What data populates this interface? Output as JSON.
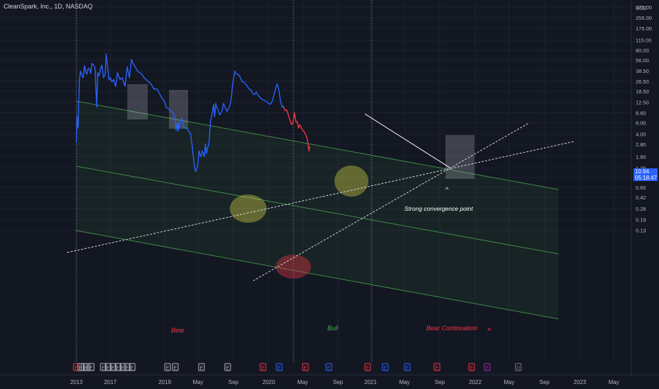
{
  "header": {
    "symbol_line": "CleanSpark, Inc., 1D, NASDAQ"
  },
  "price_axis": {
    "currency": "USD",
    "current_price": "10.94",
    "countdown": "05:18:47",
    "ticks": [
      "550.00",
      "375.00",
      "255.00",
      "175.00",
      "115.00",
      "80.00",
      "56.00",
      "38.50",
      "26.50",
      "18.50",
      "12.50",
      "8.60",
      "6.00",
      "4.00",
      "2.80",
      "1.80",
      "1.20",
      "0.85",
      "0.60",
      "0.42",
      "0.28",
      "0.19",
      "0.13"
    ]
  },
  "time_axis": {
    "labels": [
      "2013",
      "2017",
      "2019",
      "May",
      "Sep",
      "2020",
      "May",
      "Sep",
      "2021",
      "May",
      "Sep",
      "2022",
      "May",
      "Sep",
      "2023",
      "May"
    ]
  },
  "annotations": {
    "bear": "Bear",
    "bull": "Bull",
    "bear_continuation": "Bear Continuation",
    "continuation_arrow": "»",
    "convergence": "Strong convergence point",
    "caret": "^"
  },
  "events": {
    "earnings_label": "E",
    "dividend_label": "D"
  },
  "colors": {
    "background": "#131722",
    "price_line": "#2962ff",
    "price_line_bear": "#f23645",
    "channel": "#4caf50",
    "annotation_bear": "#f23645",
    "annotation_bull": "#4caf50",
    "accent": "#2962ff"
  },
  "chart_data": {
    "type": "line",
    "title": "CleanSpark, Inc., 1D, NASDAQ",
    "xlabel": "",
    "ylabel": "",
    "y_scale": "log",
    "ylim": [
      0.11,
      560
    ],
    "series": [
      {
        "values": [
          [
            0.0,
            2.9
          ],
          [
            0.02,
            7.5
          ],
          [
            0.05,
            5.0
          ],
          [
            0.09,
            28
          ],
          [
            0.12,
            38
          ],
          [
            0.16,
            33
          ],
          [
            0.2,
            30
          ],
          [
            0.24,
            46
          ],
          [
            0.28,
            36
          ],
          [
            0.31,
            34
          ],
          [
            0.35,
            42
          ],
          [
            0.39,
            41
          ],
          [
            0.42,
            35
          ],
          [
            0.46,
            50
          ],
          [
            0.5,
            48
          ],
          [
            0.55,
            43
          ],
          [
            0.6,
            10.5
          ],
          [
            0.63,
            36
          ],
          [
            0.67,
            32
          ],
          [
            0.71,
            41
          ],
          [
            0.75,
            47
          ],
          [
            0.8,
            30
          ],
          [
            0.85,
            34
          ],
          [
            0.88,
            70
          ],
          [
            0.92,
            44
          ],
          [
            0.96,
            28
          ],
          [
            1.0,
            30
          ],
          [
            1.03,
            26
          ],
          [
            1.06,
            28
          ],
          [
            1.1,
            22
          ],
          [
            1.13,
            36
          ],
          [
            1.18,
            28
          ],
          [
            1.22,
            30
          ],
          [
            1.27,
            22
          ],
          [
            1.31,
            44
          ],
          [
            1.35,
            30
          ],
          [
            1.39,
            58
          ],
          [
            1.42,
            50
          ],
          [
            1.46,
            44
          ],
          [
            1.5,
            38
          ],
          [
            1.54,
            36
          ],
          [
            1.58,
            34
          ],
          [
            1.62,
            30
          ],
          [
            1.66,
            28
          ],
          [
            1.7,
            26
          ],
          [
            1.75,
            24
          ],
          [
            1.8,
            20
          ],
          [
            1.86,
            20
          ],
          [
            1.92,
            16
          ],
          [
            2.0,
            12.5
          ],
          [
            2.05,
            10.5
          ],
          [
            2.1,
            10
          ],
          [
            2.15,
            9.5
          ],
          [
            2.2,
            9
          ],
          [
            2.25,
            8.6
          ],
          [
            2.3,
            7.5
          ],
          [
            2.32,
            6.0
          ],
          [
            2.34,
            4.6
          ],
          [
            2.36,
            5.2
          ],
          [
            2.38,
            6.1
          ],
          [
            2.4,
            4.4
          ],
          [
            2.42,
            5.8
          ],
          [
            2.44,
            4.9
          ],
          [
            2.46,
            6.2
          ],
          [
            2.48,
            6.6
          ],
          [
            2.5,
            6.8
          ],
          [
            2.52,
            7.0
          ],
          [
            2.54,
            6.5
          ],
          [
            2.56,
            5.2
          ],
          [
            2.59,
            5.0
          ],
          [
            2.63,
            5.0
          ],
          [
            2.68,
            4.9
          ],
          [
            2.73,
            4.4
          ],
          [
            2.78,
            4.0
          ],
          [
            2.82,
            2.8
          ],
          [
            2.86,
            1.8
          ],
          [
            2.9,
            1.2
          ],
          [
            2.93,
            1.05
          ],
          [
            2.96,
            1.15
          ],
          [
            3.0,
            1.4
          ],
          [
            3.03,
            2.2
          ],
          [
            3.06,
            1.9
          ],
          [
            3.09,
            1.8
          ],
          [
            3.12,
            2.2
          ],
          [
            3.15,
            2.0
          ],
          [
            3.18,
            1.8
          ],
          [
            3.21,
            2.8
          ],
          [
            3.24,
            2.0
          ],
          [
            3.27,
            2.5
          ],
          [
            3.3,
            2.6
          ],
          [
            3.33,
            4.0
          ],
          [
            3.35,
            6.0
          ],
          [
            3.38,
            7.5
          ],
          [
            3.41,
            9.0
          ],
          [
            3.44,
            11.5
          ],
          [
            3.47,
            7.5
          ],
          [
            3.5,
            12
          ],
          [
            3.53,
            10.5
          ],
          [
            3.57,
            9.5
          ],
          [
            3.61,
            8.0
          ],
          [
            3.65,
            8.5
          ],
          [
            3.69,
            9.5
          ],
          [
            3.72,
            12
          ],
          [
            3.75,
            11
          ],
          [
            3.78,
            10
          ],
          [
            3.82,
            9
          ],
          [
            3.86,
            10
          ],
          [
            3.9,
            11
          ],
          [
            3.94,
            14
          ],
          [
            3.98,
            24
          ],
          [
            4.02,
            32
          ],
          [
            4.04,
            38
          ],
          [
            4.07,
            35
          ],
          [
            4.11,
            34
          ],
          [
            4.16,
            33
          ],
          [
            4.2,
            30
          ],
          [
            4.25,
            26
          ],
          [
            4.3,
            26
          ],
          [
            4.35,
            24
          ],
          [
            4.4,
            22
          ],
          [
            4.45,
            20
          ],
          [
            4.5,
            19.5
          ],
          [
            4.55,
            17
          ],
          [
            4.6,
            16.5
          ],
          [
            4.65,
            18
          ],
          [
            4.7,
            16
          ],
          [
            4.75,
            15
          ],
          [
            4.8,
            14
          ],
          [
            4.85,
            13.5
          ],
          [
            4.9,
            13.2
          ],
          [
            4.95,
            12.6
          ],
          [
            5.0,
            12
          ],
          [
            5.05,
            11.6
          ],
          [
            5.1,
            12.8
          ],
          [
            5.15,
            16
          ],
          [
            5.2,
            20
          ],
          [
            5.25,
            24
          ],
          [
            5.3,
            19.5
          ],
          [
            5.35,
            12.8
          ],
          [
            5.4,
            10.5
          ],
          [
            5.43,
            10.9
          ]
        ]
      },
      {
        "values": [
          [
            5.43,
            10.9
          ],
          [
            5.48,
            9.3
          ],
          [
            5.53,
            9.5
          ],
          [
            5.58,
            8.0
          ],
          [
            5.63,
            6.5
          ],
          [
            5.68,
            5.6
          ],
          [
            5.72,
            6.2
          ],
          [
            5.76,
            8.6
          ],
          [
            5.8,
            6.2
          ],
          [
            5.84,
            6.3
          ],
          [
            5.88,
            5.0
          ],
          [
            5.92,
            5.6
          ],
          [
            5.96,
            5.0
          ],
          [
            6.0,
            4.6
          ],
          [
            6.04,
            4.4
          ],
          [
            6.08,
            4.0
          ],
          [
            6.12,
            3.5
          ],
          [
            6.15,
            2.9
          ],
          [
            6.18,
            2.2
          ],
          [
            6.2,
            2.6
          ]
        ]
      }
    ],
    "x_tick_labels": [
      "2013",
      "2017",
      "2019",
      "May",
      "Sep",
      "2020",
      "May",
      "Sep",
      "2021",
      "May",
      "Sep",
      "2022",
      "May",
      "Sep",
      "2023",
      "May"
    ],
    "y_tick_labels": [
      "550.00",
      "375.00",
      "255.00",
      "175.00",
      "115.00",
      "80.00",
      "56.00",
      "38.50",
      "26.50",
      "18.50",
      "12.50",
      "8.60",
      "6.00",
      "4.00",
      "2.80",
      "1.80",
      "1.20",
      "0.85",
      "0.60",
      "0.42",
      "0.28",
      "0.19",
      "0.13"
    ],
    "annotations": [
      "Bear",
      "Bull",
      "Bear Continuation",
      "Strong convergence point"
    ],
    "grid": true,
    "legend": "none"
  }
}
